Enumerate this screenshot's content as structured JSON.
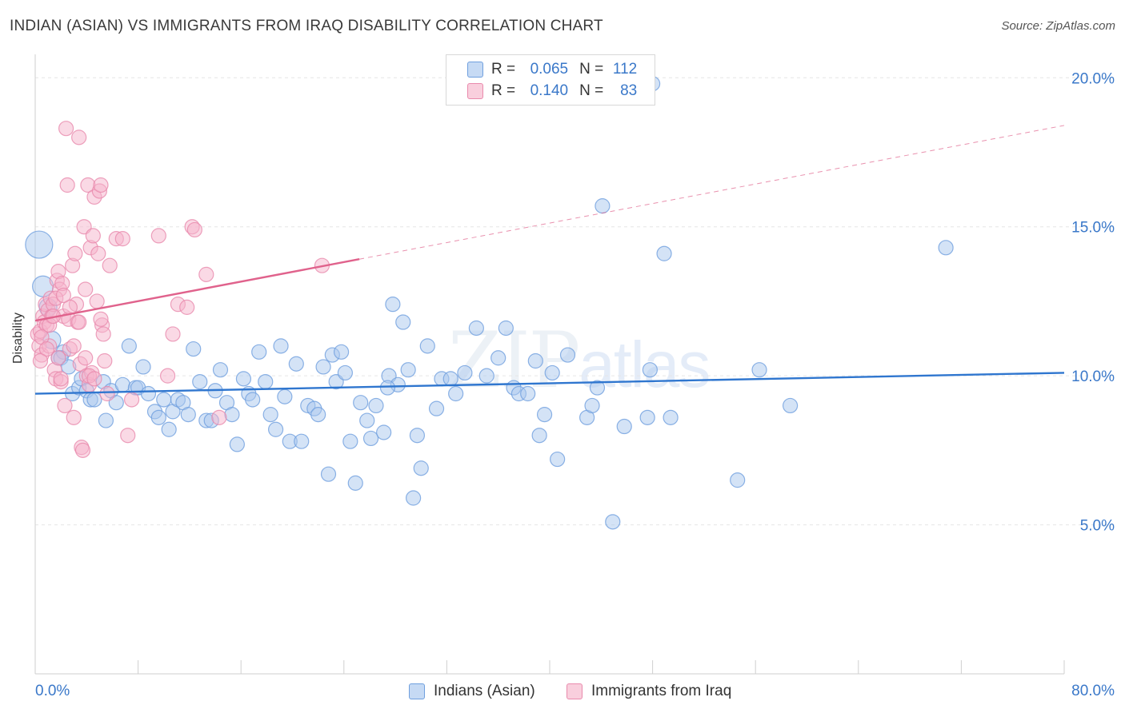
{
  "header": {
    "title": "INDIAN (ASIAN) VS IMMIGRANTS FROM IRAQ DISABILITY CORRELATION CHART",
    "source": "Source: ZipAtlas.com"
  },
  "watermark": {
    "zip": "ZIP",
    "atlas": "atlas"
  },
  "legend_top": {
    "rows": [
      {
        "r_label": "R =",
        "r_value": "0.065",
        "n_label": "N =",
        "n_value": "112"
      },
      {
        "r_label": "R =",
        "r_value": "0.140",
        "n_label": "N =",
        "n_value": "83"
      }
    ]
  },
  "legend_bottom": {
    "items": [
      "Indians (Asian)",
      "Immigrants from Iraq"
    ]
  },
  "colors": {
    "blue_fill": "#a9c8ee",
    "blue_stroke": "#6f9fde",
    "blue_line": "#2f76cf",
    "pink_fill": "#f5b4cb",
    "pink_stroke": "#e98aac",
    "pink_line": "#e0628c",
    "tick_label": "#3a78c9",
    "grid": "#e6e6e6"
  },
  "chart_data": {
    "type": "scatter",
    "title": "INDIAN (ASIAN) VS IMMIGRANTS FROM IRAQ DISABILITY CORRELATION CHART",
    "xlabel": "",
    "ylabel": "Disability",
    "xlim": [
      0,
      80
    ],
    "ylim": [
      0,
      21
    ],
    "x_tick_labels": [
      "0.0%",
      "80.0%"
    ],
    "y_ticks": [
      5,
      10,
      15,
      20
    ],
    "y_tick_labels": [
      "5.0%",
      "10.0%",
      "15.0%",
      "20.0%"
    ],
    "grid": true,
    "legend": "bottom-center",
    "series": [
      {
        "name": "Indians (Asian)",
        "R": 0.065,
        "N": 112,
        "trend": {
          "x": [
            0,
            80
          ],
          "y": [
            9.4,
            10.1
          ],
          "solid_until": 80
        },
        "points": [
          [
            0.3,
            14.4
          ],
          [
            0.6,
            13.0
          ],
          [
            1.0,
            12.3
          ],
          [
            1.3,
            11.2
          ],
          [
            1.8,
            10.6
          ],
          [
            2.2,
            10.8
          ],
          [
            2.0,
            10.6
          ],
          [
            2.6,
            10.3
          ],
          [
            2.9,
            9.4
          ],
          [
            3.4,
            9.6
          ],
          [
            3.6,
            9.9
          ],
          [
            4.0,
            9.5
          ],
          [
            4.3,
            9.2
          ],
          [
            4.6,
            9.2
          ],
          [
            5.3,
            9.8
          ],
          [
            5.5,
            8.5
          ],
          [
            5.9,
            9.5
          ],
          [
            6.3,
            9.1
          ],
          [
            6.8,
            9.7
          ],
          [
            7.3,
            11.0
          ],
          [
            7.8,
            9.6
          ],
          [
            8.0,
            9.6
          ],
          [
            8.4,
            10.3
          ],
          [
            8.8,
            9.4
          ],
          [
            9.3,
            8.8
          ],
          [
            9.6,
            8.6
          ],
          [
            10.0,
            9.2
          ],
          [
            10.4,
            8.2
          ],
          [
            10.7,
            8.8
          ],
          [
            11.1,
            9.2
          ],
          [
            11.5,
            9.1
          ],
          [
            11.9,
            8.7
          ],
          [
            12.3,
            10.9
          ],
          [
            12.8,
            9.8
          ],
          [
            13.3,
            8.5
          ],
          [
            13.7,
            8.5
          ],
          [
            14.0,
            9.5
          ],
          [
            14.4,
            10.2
          ],
          [
            14.9,
            9.1
          ],
          [
            15.3,
            8.7
          ],
          [
            15.7,
            7.7
          ],
          [
            16.2,
            9.9
          ],
          [
            16.6,
            9.4
          ],
          [
            16.9,
            9.2
          ],
          [
            17.4,
            10.8
          ],
          [
            17.9,
            9.8
          ],
          [
            18.3,
            8.7
          ],
          [
            18.7,
            8.2
          ],
          [
            19.1,
            11.0
          ],
          [
            19.4,
            9.3
          ],
          [
            19.8,
            7.8
          ],
          [
            20.3,
            10.4
          ],
          [
            20.7,
            7.8
          ],
          [
            21.2,
            9.0
          ],
          [
            21.7,
            8.9
          ],
          [
            22.0,
            8.7
          ],
          [
            22.4,
            10.3
          ],
          [
            22.8,
            6.7
          ],
          [
            23.1,
            10.7
          ],
          [
            23.4,
            9.8
          ],
          [
            23.8,
            10.8
          ],
          [
            24.1,
            10.1
          ],
          [
            24.5,
            7.8
          ],
          [
            24.9,
            6.4
          ],
          [
            25.3,
            9.1
          ],
          [
            25.8,
            8.5
          ],
          [
            26.1,
            7.9
          ],
          [
            26.5,
            9.0
          ],
          [
            27.1,
            8.1
          ],
          [
            27.5,
            10.0
          ],
          [
            27.8,
            12.4
          ],
          [
            28.2,
            9.7
          ],
          [
            28.6,
            11.8
          ],
          [
            29.0,
            10.2
          ],
          [
            29.4,
            5.9
          ],
          [
            29.7,
            8.0
          ],
          [
            30.0,
            6.9
          ],
          [
            30.5,
            11.0
          ],
          [
            31.2,
            8.9
          ],
          [
            31.6,
            9.9
          ],
          [
            32.3,
            9.9
          ],
          [
            32.7,
            9.4
          ],
          [
            33.4,
            10.1
          ],
          [
            34.3,
            11.6
          ],
          [
            35.1,
            10.0
          ],
          [
            36.0,
            10.6
          ],
          [
            36.6,
            11.6
          ],
          [
            37.2,
            9.6
          ],
          [
            37.6,
            9.4
          ],
          [
            38.3,
            9.4
          ],
          [
            38.9,
            10.5
          ],
          [
            39.2,
            8.0
          ],
          [
            39.6,
            8.7
          ],
          [
            40.2,
            10.1
          ],
          [
            40.6,
            7.2
          ],
          [
            41.4,
            10.7
          ],
          [
            42.9,
            8.6
          ],
          [
            43.3,
            9.0
          ],
          [
            43.7,
            9.6
          ],
          [
            44.1,
            15.7
          ],
          [
            44.9,
            5.1
          ],
          [
            45.8,
            8.3
          ],
          [
            47.6,
            8.6
          ],
          [
            47.8,
            10.2
          ],
          [
            48.9,
            14.1
          ],
          [
            49.4,
            8.6
          ],
          [
            54.6,
            6.5
          ],
          [
            56.3,
            10.2
          ],
          [
            58.7,
            9.0
          ],
          [
            70.8,
            14.3
          ],
          [
            48.0,
            19.8
          ],
          [
            27.4,
            9.6
          ]
        ]
      },
      {
        "name": "Immigrants from Iraq",
        "R": 0.14,
        "N": 83,
        "trend": {
          "x": [
            0,
            80
          ],
          "y": [
            11.85,
            18.4
          ],
          "solid_until": 25.2
        },
        "points": [
          [
            0.2,
            11.4
          ],
          [
            0.3,
            11.0
          ],
          [
            0.4,
            11.5
          ],
          [
            0.5,
            10.7
          ],
          [
            0.6,
            12.0
          ],
          [
            0.7,
            11.8
          ],
          [
            0.8,
            12.4
          ],
          [
            0.9,
            11.7
          ],
          [
            1.0,
            12.2
          ],
          [
            1.1,
            11.0
          ],
          [
            1.2,
            12.6
          ],
          [
            1.3,
            12.0
          ],
          [
            1.4,
            12.4
          ],
          [
            1.5,
            10.2
          ],
          [
            1.6,
            9.9
          ],
          [
            1.7,
            13.2
          ],
          [
            1.8,
            13.5
          ],
          [
            1.9,
            12.9
          ],
          [
            2.0,
            9.8
          ],
          [
            2.1,
            13.1
          ],
          [
            2.2,
            12.0
          ],
          [
            2.3,
            9.0
          ],
          [
            2.5,
            16.4
          ],
          [
            2.6,
            11.9
          ],
          [
            2.7,
            10.9
          ],
          [
            2.9,
            13.7
          ],
          [
            3.0,
            8.6
          ],
          [
            3.1,
            14.1
          ],
          [
            3.2,
            12.4
          ],
          [
            3.3,
            11.8
          ],
          [
            3.4,
            11.8
          ],
          [
            3.5,
            10.4
          ],
          [
            3.6,
            7.6
          ],
          [
            3.7,
            7.5
          ],
          [
            3.8,
            15.0
          ],
          [
            3.9,
            12.9
          ],
          [
            4.0,
            10.0
          ],
          [
            4.1,
            16.4
          ],
          [
            4.2,
            9.7
          ],
          [
            4.3,
            14.3
          ],
          [
            4.4,
            10.1
          ],
          [
            4.5,
            14.7
          ],
          [
            4.6,
            16.0
          ],
          [
            4.8,
            12.5
          ],
          [
            4.9,
            14.1
          ],
          [
            5.0,
            16.2
          ],
          [
            5.1,
            16.4
          ],
          [
            5.2,
            11.7
          ],
          [
            5.3,
            11.4
          ],
          [
            5.4,
            10.5
          ],
          [
            5.6,
            9.4
          ],
          [
            5.8,
            13.7
          ],
          [
            6.3,
            14.6
          ],
          [
            6.8,
            14.6
          ],
          [
            7.2,
            8.0
          ],
          [
            7.5,
            9.2
          ],
          [
            9.6,
            14.7
          ],
          [
            10.3,
            10.0
          ],
          [
            10.7,
            11.4
          ],
          [
            11.1,
            12.4
          ],
          [
            11.8,
            12.3
          ],
          [
            12.2,
            15.0
          ],
          [
            12.4,
            14.9
          ],
          [
            13.3,
            13.4
          ],
          [
            14.3,
            8.6
          ],
          [
            22.3,
            13.7
          ],
          [
            3.4,
            18.0
          ],
          [
            2.4,
            18.3
          ],
          [
            4.2,
            10.0
          ],
          [
            1.1,
            11.7
          ],
          [
            1.8,
            10.6
          ],
          [
            2.7,
            12.3
          ],
          [
            0.5,
            11.3
          ],
          [
            3.9,
            10.6
          ],
          [
            1.4,
            12.0
          ],
          [
            5.1,
            11.9
          ],
          [
            2.0,
            9.9
          ],
          [
            0.9,
            10.9
          ],
          [
            1.6,
            12.6
          ],
          [
            3.0,
            11.0
          ],
          [
            4.6,
            9.9
          ],
          [
            0.4,
            10.5
          ],
          [
            2.2,
            12.7
          ]
        ]
      }
    ]
  }
}
